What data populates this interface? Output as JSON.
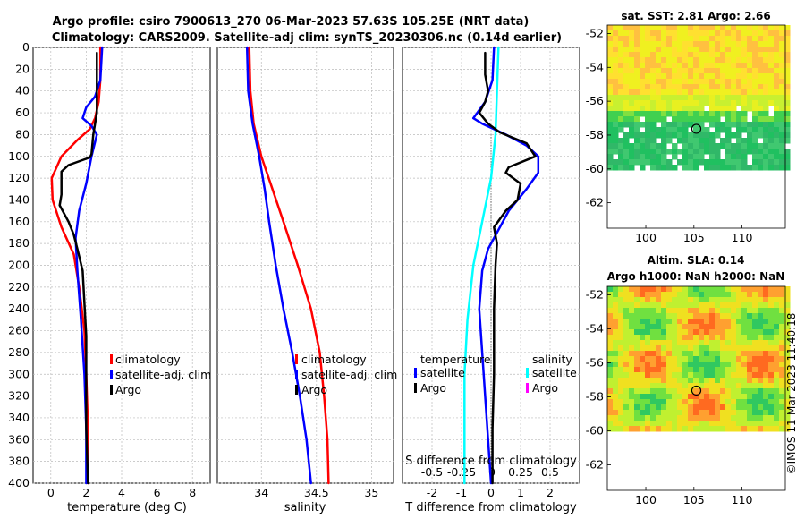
{
  "header": {
    "line1": "Argo profile: csiro 7900613_270 06-Mar-2023 57.63S 105.25E (NRT data)",
    "line2": "Climatology: CARS2009. Satellite-adj clim: synTS_20230306.nc (0.14d earlier)"
  },
  "watermark": "©IMOS 11-Mar-2023 11:40:18",
  "colors": {
    "climatology": "#ff0000",
    "satellite": "#0000ff",
    "argo": "#000000",
    "s_satellite": "#00ffff",
    "s_argo": "#ff00ff",
    "grid": "#bbbbbb"
  },
  "chart_data": [
    {
      "id": "temperature",
      "type": "line",
      "xlabel": "temperature (deg C)",
      "ylabel": "",
      "xlim": [
        -1,
        9
      ],
      "ylim": [
        400,
        0
      ],
      "xticks": [
        0,
        2,
        4,
        6,
        8
      ],
      "yticks": [
        0,
        20,
        40,
        60,
        80,
        100,
        120,
        140,
        160,
        180,
        200,
        220,
        240,
        260,
        280,
        300,
        320,
        340,
        360,
        380,
        400
      ],
      "legend": [
        "climatology",
        "satellite-adj. clim",
        "Argo"
      ],
      "series": [
        {
          "name": "climatology",
          "color": "#ff0000",
          "points": [
            [
              2.8,
              0
            ],
            [
              2.8,
              30
            ],
            [
              2.7,
              50
            ],
            [
              2.5,
              65
            ],
            [
              2.2,
              75
            ],
            [
              1.5,
              85
            ],
            [
              0.6,
              100
            ],
            [
              0.05,
              120
            ],
            [
              0.1,
              140
            ],
            [
              0.6,
              165
            ],
            [
              1.3,
              190
            ],
            [
              1.6,
              220
            ],
            [
              1.9,
              260
            ],
            [
              2.0,
              300
            ],
            [
              2.1,
              350
            ],
            [
              2.1,
              400
            ]
          ]
        },
        {
          "name": "satellite-adj. clim",
          "color": "#0000ff",
          "points": [
            [
              2.9,
              0
            ],
            [
              2.8,
              30
            ],
            [
              2.5,
              45
            ],
            [
              2.0,
              55
            ],
            [
              1.8,
              65
            ],
            [
              2.3,
              72
            ],
            [
              2.6,
              80
            ],
            [
              2.3,
              100
            ],
            [
              2.0,
              125
            ],
            [
              1.6,
              150
            ],
            [
              1.4,
              175
            ],
            [
              1.5,
              205
            ],
            [
              1.7,
              250
            ],
            [
              1.9,
              300
            ],
            [
              2.0,
              350
            ],
            [
              2.0,
              400
            ]
          ]
        },
        {
          "name": "Argo",
          "color": "#000000",
          "points": [
            [
              2.6,
              5
            ],
            [
              2.6,
              30
            ],
            [
              2.6,
              60
            ],
            [
              2.4,
              80
            ],
            [
              2.3,
              98
            ],
            [
              2.2,
              101
            ],
            [
              1.0,
              108
            ],
            [
              0.6,
              114
            ],
            [
              0.6,
              135
            ],
            [
              0.5,
              145
            ],
            [
              1.0,
              160
            ],
            [
              1.3,
              172
            ],
            [
              1.5,
              185
            ],
            [
              1.8,
              205
            ],
            [
              1.9,
              235
            ],
            [
              2.0,
              265
            ],
            [
              2.0,
              300
            ],
            [
              2.0,
              350
            ],
            [
              2.1,
              400
            ]
          ]
        }
      ]
    },
    {
      "id": "salinity",
      "type": "line",
      "xlabel": "salinity",
      "ylabel": "",
      "xlim": [
        33.6,
        35.2
      ],
      "ylim": [
        400,
        0
      ],
      "xticks": [
        34,
        34.5,
        35
      ],
      "xticklabels": [
        "34",
        "34.5",
        "35"
      ],
      "legend": [
        "climatology",
        "satellite-adj. clim",
        "Argo"
      ],
      "series": [
        {
          "name": "climatology",
          "color": "#ff0000",
          "points": [
            [
              33.89,
              0
            ],
            [
              33.9,
              40
            ],
            [
              33.93,
              70
            ],
            [
              34.0,
              100
            ],
            [
              34.1,
              130
            ],
            [
              34.2,
              160
            ],
            [
              34.33,
              200
            ],
            [
              34.45,
              240
            ],
            [
              34.53,
              280
            ],
            [
              34.57,
              320
            ],
            [
              34.6,
              360
            ],
            [
              34.61,
              400
            ]
          ]
        },
        {
          "name": "satellite-adj. clim",
          "color": "#0000ff",
          "points": [
            [
              33.87,
              0
            ],
            [
              33.88,
              40
            ],
            [
              33.92,
              70
            ],
            [
              33.98,
              100
            ],
            [
              34.03,
              130
            ],
            [
              34.07,
              160
            ],
            [
              34.13,
              200
            ],
            [
              34.2,
              240
            ],
            [
              34.28,
              280
            ],
            [
              34.35,
              320
            ],
            [
              34.41,
              360
            ],
            [
              34.45,
              400
            ]
          ]
        }
      ]
    },
    {
      "id": "difference",
      "type": "line",
      "xlabel": "T difference from climatology",
      "toplabel": "S difference from climatology",
      "xlim": [
        -3,
        3
      ],
      "ylim": [
        400,
        0
      ],
      "xticks": [
        -2,
        -1,
        0,
        1,
        2
      ],
      "xticklabels": [
        "-2",
        "-1",
        "0",
        "1",
        "2"
      ],
      "sticks": [
        -2,
        -1,
        0,
        1,
        2
      ],
      "sticklabels": [
        "-0.5",
        "-0.25",
        "0",
        "0.25",
        "0.5"
      ],
      "legend_left_title": "temperature",
      "legend_right_title": "salinity",
      "legend_left": [
        "satellite",
        "Argo"
      ],
      "legend_right": [
        "satellite",
        "Argo"
      ],
      "series": [
        {
          "name": "salinity satellite",
          "color": "#00ffff",
          "points": [
            [
              0.25,
              0
            ],
            [
              0.2,
              40
            ],
            [
              0.15,
              80
            ],
            [
              0.0,
              120
            ],
            [
              -0.3,
              160
            ],
            [
              -0.6,
              200
            ],
            [
              -0.8,
              250
            ],
            [
              -0.9,
              300
            ],
            [
              -0.9,
              350
            ],
            [
              -0.9,
              400
            ]
          ]
        },
        {
          "name": "temperature satellite",
          "color": "#0000ff",
          "points": [
            [
              0.1,
              0
            ],
            [
              0.05,
              30
            ],
            [
              -0.2,
              50
            ],
            [
              -0.6,
              65
            ],
            [
              -0.3,
              70
            ],
            [
              0.5,
              80
            ],
            [
              1.2,
              90
            ],
            [
              1.6,
              100
            ],
            [
              1.6,
              115
            ],
            [
              1.2,
              130
            ],
            [
              0.6,
              150
            ],
            [
              0.2,
              170
            ],
            [
              -0.1,
              185
            ],
            [
              -0.3,
              205
            ],
            [
              -0.4,
              240
            ],
            [
              -0.3,
              280
            ],
            [
              -0.2,
              320
            ],
            [
              -0.1,
              360
            ],
            [
              0.0,
              400
            ]
          ]
        },
        {
          "name": "temperature Argo",
          "color": "#000000",
          "points": [
            [
              -0.2,
              5
            ],
            [
              -0.2,
              25
            ],
            [
              -0.1,
              40
            ],
            [
              -0.2,
              50
            ],
            [
              -0.4,
              60
            ],
            [
              -0.1,
              70
            ],
            [
              0.3,
              78
            ],
            [
              1.2,
              88
            ],
            [
              1.5,
              100
            ],
            [
              0.6,
              110
            ],
            [
              0.5,
              115
            ],
            [
              1.0,
              125
            ],
            [
              0.9,
              140
            ],
            [
              0.5,
              150
            ],
            [
              0.1,
              165
            ],
            [
              0.2,
              180
            ],
            [
              0.15,
              200
            ],
            [
              0.1,
              240
            ],
            [
              0.1,
              300
            ],
            [
              0.05,
              350
            ],
            [
              0.05,
              400
            ]
          ]
        }
      ]
    },
    {
      "id": "sst_map",
      "type": "heatmap",
      "title": "sat. SST: 2.81 Argo: 2.66",
      "xlim": [
        96,
        114.5
      ],
      "ylim": [
        -63.5,
        -51.5
      ],
      "xticks": [
        100,
        105,
        110
      ],
      "yticks": [
        -52,
        -54,
        -56,
        -58,
        -60,
        -62
      ],
      "marker": {
        "lon": 105.25,
        "lat": -57.63
      }
    },
    {
      "id": "sla_map",
      "type": "heatmap",
      "title": "Altim. SLA: 0.14",
      "subtitle": "Argo h1000: NaN h2000: NaN",
      "xlim": [
        96,
        114.5
      ],
      "ylim": [
        -63.5,
        -51.5
      ],
      "xticks": [
        100,
        105,
        110
      ],
      "yticks": [
        -52,
        -54,
        -56,
        -58,
        -60,
        -62
      ],
      "marker": {
        "lon": 105.25,
        "lat": -57.63
      }
    }
  ]
}
